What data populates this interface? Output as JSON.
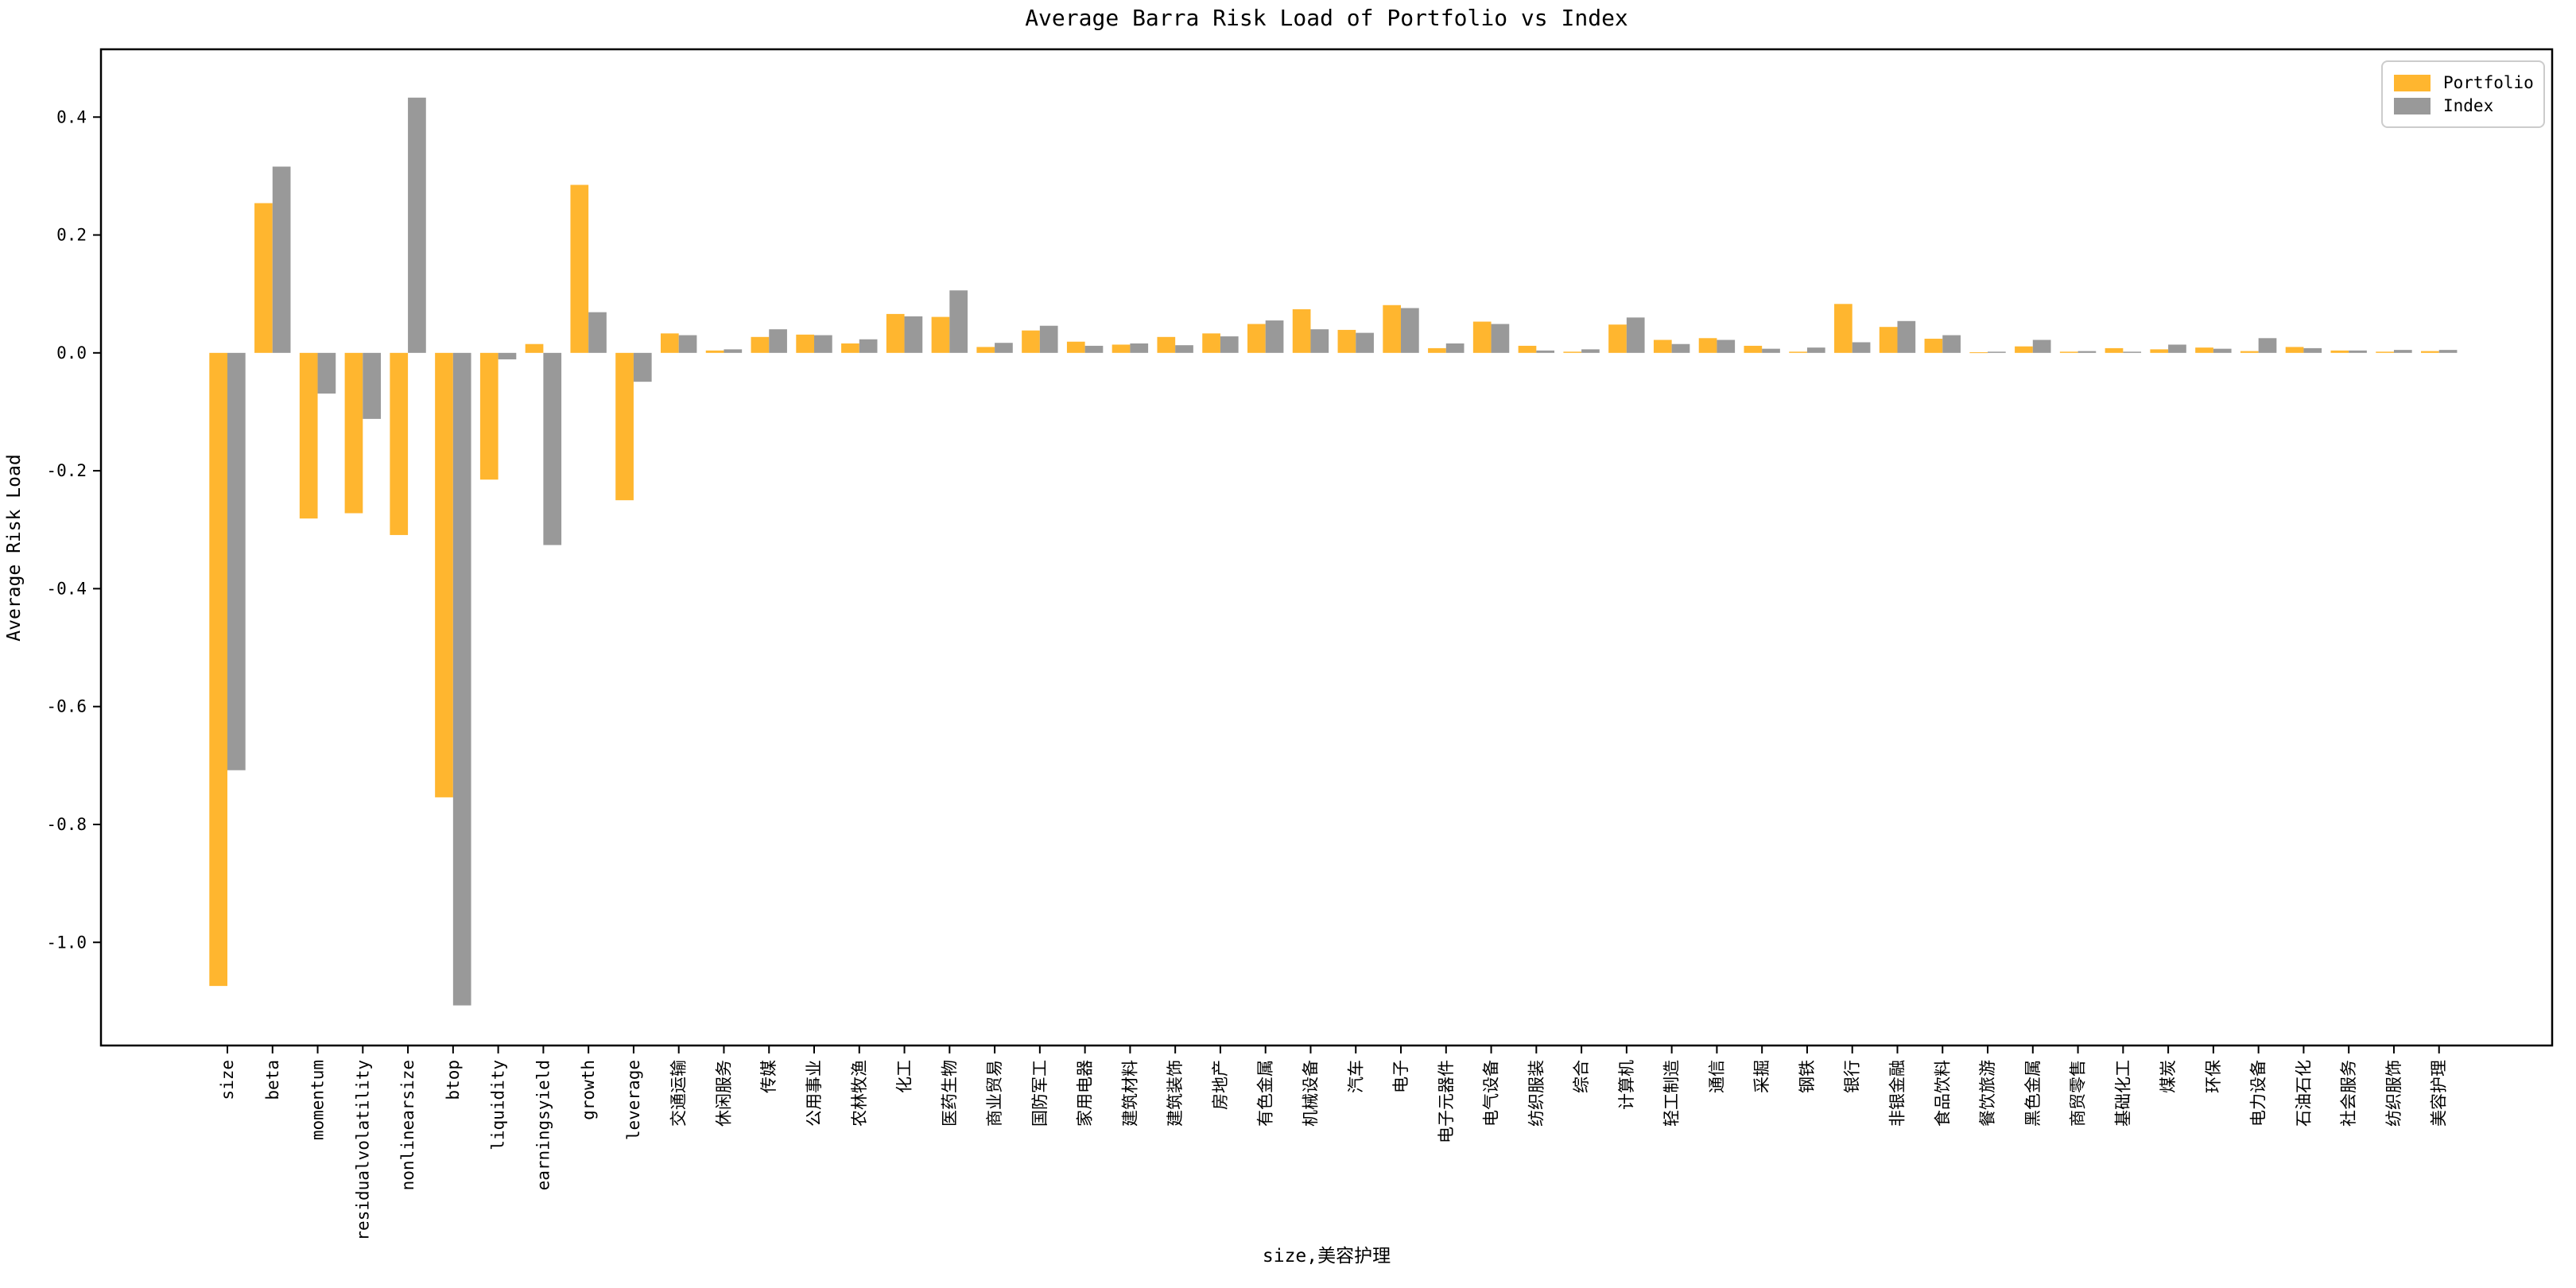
{
  "figure": {
    "background": "#ffffff"
  },
  "chart_data": {
    "type": "bar",
    "title": "Average Barra Risk Load of Portfolio vs Index",
    "ylabel": "Average Risk Load",
    "xlabel": "size,美容护理",
    "legend_position": "upper right",
    "grid": false,
    "ylim": [
      -1.175,
      0.515
    ],
    "yticks": [
      {
        "v": 0.4,
        "label": "0.4"
      },
      {
        "v": 0.2,
        "label": "0.2"
      },
      {
        "v": 0.0,
        "label": "0.0"
      },
      {
        "v": -0.2,
        "label": "-0.2"
      },
      {
        "v": -0.4,
        "label": "-0.4"
      },
      {
        "v": -0.6,
        "label": "-0.6"
      },
      {
        "v": -0.8,
        "label": "-0.8"
      },
      {
        "v": -1.0,
        "label": "-1.0"
      }
    ],
    "categories": [
      "size",
      "beta",
      "momentum",
      "residualvolatility",
      "nonlinearsize",
      "btop",
      "liquidity",
      "earningsyield",
      "growth",
      "leverage",
      "交通运输",
      "休闲服务",
      "传媒",
      "公用事业",
      "农林牧渔",
      "化工",
      "医药生物",
      "商业贸易",
      "国防军工",
      "家用电器",
      "建筑材料",
      "建筑装饰",
      "房地产",
      "有色金属",
      "机械设备",
      "汽车",
      "电子",
      "电子元器件",
      "电气设备",
      "纺织服装",
      "综合",
      "计算机",
      "轻工制造",
      "通信",
      "采掘",
      "钢铁",
      "银行",
      "非银金融",
      "食品饮料",
      "餐饮旅游",
      "黑色金属",
      "商贸零售",
      "基础化工",
      "煤炭",
      "环保",
      "电力设备",
      "石油石化",
      "社会服务",
      "纺织服饰",
      "美容护理"
    ],
    "series": [
      {
        "name": "Portfolio",
        "color": "#FFB62F",
        "values": [
          -1.074,
          0.254,
          -0.281,
          -0.272,
          -0.309,
          -0.754,
          -0.215,
          0.015,
          0.285,
          -0.25,
          0.033,
          0.004,
          0.027,
          0.031,
          0.016,
          0.066,
          0.061,
          0.01,
          0.038,
          0.019,
          0.014,
          0.027,
          0.033,
          0.049,
          0.074,
          0.039,
          0.081,
          0.008,
          0.053,
          0.012,
          0.002,
          0.048,
          0.022,
          0.025,
          0.012,
          0.002,
          0.083,
          0.044,
          0.024,
          0.001,
          0.011,
          0.002,
          0.008,
          0.006,
          0.009,
          0.003,
          0.01,
          0.004,
          0.002,
          0.003
        ]
      },
      {
        "name": "Index",
        "color": "#999999",
        "values": [
          -0.708,
          0.316,
          -0.069,
          -0.112,
          0.433,
          -1.107,
          -0.011,
          -0.326,
          0.069,
          -0.049,
          0.03,
          0.006,
          0.04,
          0.03,
          0.023,
          0.062,
          0.106,
          0.017,
          0.046,
          0.012,
          0.016,
          0.013,
          0.028,
          0.055,
          0.04,
          0.034,
          0.076,
          0.016,
          0.049,
          0.004,
          0.006,
          0.06,
          0.015,
          0.022,
          0.007,
          0.009,
          0.018,
          0.054,
          0.03,
          0.002,
          0.022,
          0.003,
          0.002,
          0.014,
          0.007,
          0.025,
          0.008,
          0.004,
          0.005,
          0.005
        ]
      }
    ]
  }
}
